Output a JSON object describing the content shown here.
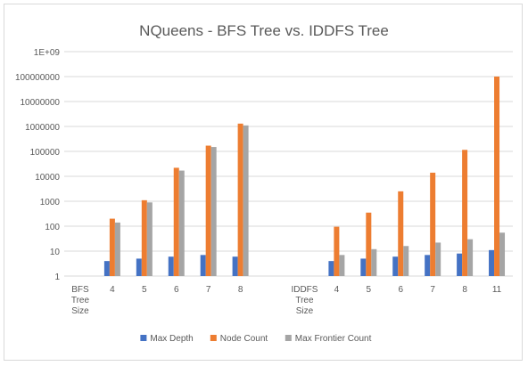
{
  "chart_data": {
    "type": "bar",
    "title": "NQueens - BFS Tree vs. IDDFS Tree",
    "xlabel": "",
    "ylabel": "",
    "y_scale": "log",
    "ylim": [
      1,
      1000000000
    ],
    "y_tick_labels": [
      "1",
      "10",
      "100",
      "1000",
      "10000",
      "100000",
      "1000000",
      "10000000",
      "100000000",
      "1E+09"
    ],
    "grid": true,
    "legend_position": "bottom",
    "categories": [
      "BFS\nTree\nSize",
      "4",
      "5",
      "6",
      "7",
      "8",
      "",
      "IDDFS\nTree\nSize",
      "4",
      "5",
      "6",
      "7",
      "8",
      "11"
    ],
    "series": [
      {
        "name": "Max Depth",
        "color": "#4472c4",
        "values": [
          null,
          4,
          5,
          6,
          7,
          6,
          null,
          null,
          4,
          5,
          6,
          7,
          8,
          11
        ]
      },
      {
        "name": "Node Count",
        "color": "#ed7d31",
        "values": [
          null,
          200,
          1100,
          22000,
          170000,
          1300000,
          null,
          null,
          95,
          350,
          2500,
          14000,
          115000,
          100000000
        ]
      },
      {
        "name": "Max Frontier Count",
        "color": "#a5a5a5",
        "values": [
          null,
          140,
          900,
          17000,
          150000,
          1100000,
          null,
          null,
          7,
          12,
          16,
          22,
          30,
          55
        ]
      }
    ]
  }
}
